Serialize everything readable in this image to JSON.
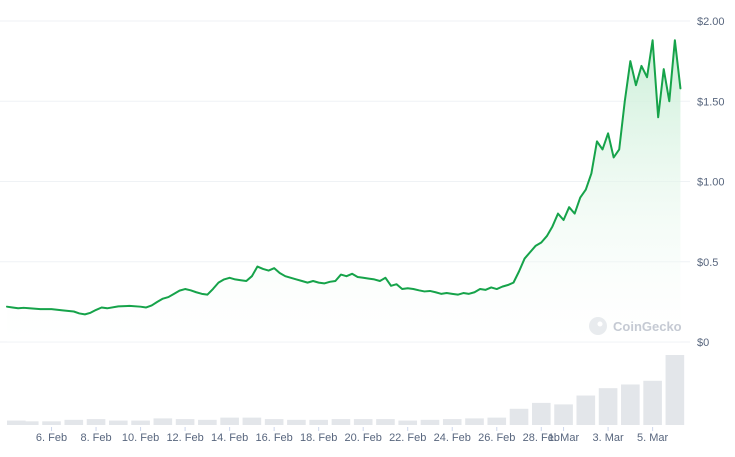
{
  "chart_data": {
    "type": "area",
    "title": "",
    "xlabel": "",
    "ylabel": "",
    "watermark": "CoinGecko",
    "currency_prefix": "$",
    "grid": true,
    "legend": "none",
    "ylim": [
      0,
      2.0
    ],
    "y_ticks": [
      {
        "value": 2.0,
        "label": "$2.00"
      },
      {
        "value": 1.5,
        "label": "$1.50"
      },
      {
        "value": 1.0,
        "label": "$1.00"
      },
      {
        "value": 0.5,
        "label": "$0.5"
      },
      {
        "value": 0.0,
        "label": "$0"
      }
    ],
    "x_range": [
      "2025-02-04",
      "2025-03-06"
    ],
    "x_ticks": [
      {
        "date": "2025-02-06",
        "label": "6. Feb"
      },
      {
        "date": "2025-02-08",
        "label": "8. Feb"
      },
      {
        "date": "2025-02-10",
        "label": "10. Feb"
      },
      {
        "date": "2025-02-12",
        "label": "12. Feb"
      },
      {
        "date": "2025-02-14",
        "label": "14. Feb"
      },
      {
        "date": "2025-02-16",
        "label": "16. Feb"
      },
      {
        "date": "2025-02-18",
        "label": "18. Feb"
      },
      {
        "date": "2025-02-20",
        "label": "20. Feb"
      },
      {
        "date": "2025-02-22",
        "label": "22. Feb"
      },
      {
        "date": "2025-02-24",
        "label": "24. Feb"
      },
      {
        "date": "2025-02-26",
        "label": "26. Feb"
      },
      {
        "date": "2025-02-28",
        "label": "28. Feb"
      },
      {
        "date": "2025-03-01",
        "label": "1. Mar"
      },
      {
        "date": "2025-03-03",
        "label": "3. Mar"
      },
      {
        "date": "2025-03-05",
        "label": "5. Mar"
      }
    ],
    "colors": {
      "line": "#16a34a",
      "area_top": "#c9eed6",
      "area_bottom": "#ffffff",
      "volume": "#e3e6ea",
      "grid": "#eff2f5",
      "tick_text": "#58667e",
      "watermark": "#c5cad3"
    },
    "series": [
      {
        "type": "line",
        "points": [
          [
            "2025-02-04 00:00",
            0.22
          ],
          [
            "2025-02-04 06:00",
            0.215
          ],
          [
            "2025-02-04 12:00",
            0.21
          ],
          [
            "2025-02-04 18:00",
            0.213
          ],
          [
            "2025-02-05 00:00",
            0.21
          ],
          [
            "2025-02-05 12:00",
            0.205
          ],
          [
            "2025-02-06 00:00",
            0.205
          ],
          [
            "2025-02-06 12:00",
            0.197
          ],
          [
            "2025-02-07 00:00",
            0.19
          ],
          [
            "2025-02-07 06:00",
            0.178
          ],
          [
            "2025-02-07 12:00",
            0.172
          ],
          [
            "2025-02-07 18:00",
            0.182
          ],
          [
            "2025-02-08 00:00",
            0.2
          ],
          [
            "2025-02-08 06:00",
            0.215
          ],
          [
            "2025-02-08 12:00",
            0.21
          ],
          [
            "2025-02-09 00:00",
            0.222
          ],
          [
            "2025-02-09 12:00",
            0.225
          ],
          [
            "2025-02-10 00:00",
            0.22
          ],
          [
            "2025-02-10 06:00",
            0.215
          ],
          [
            "2025-02-10 12:00",
            0.228
          ],
          [
            "2025-02-10 18:00",
            0.25
          ],
          [
            "2025-02-11 00:00",
            0.27
          ],
          [
            "2025-02-11 06:00",
            0.28
          ],
          [
            "2025-02-11 12:00",
            0.3
          ],
          [
            "2025-02-11 18:00",
            0.32
          ],
          [
            "2025-02-12 00:00",
            0.33
          ],
          [
            "2025-02-12 06:00",
            0.322
          ],
          [
            "2025-02-12 12:00",
            0.31
          ],
          [
            "2025-02-12 18:00",
            0.3
          ],
          [
            "2025-02-13 00:00",
            0.295
          ],
          [
            "2025-02-13 06:00",
            0.33
          ],
          [
            "2025-02-13 12:00",
            0.37
          ],
          [
            "2025-02-13 18:00",
            0.39
          ],
          [
            "2025-02-14 00:00",
            0.4
          ],
          [
            "2025-02-14 06:00",
            0.39
          ],
          [
            "2025-02-14 12:00",
            0.385
          ],
          [
            "2025-02-14 18:00",
            0.38
          ],
          [
            "2025-02-15 00:00",
            0.41
          ],
          [
            "2025-02-15 06:00",
            0.47
          ],
          [
            "2025-02-15 12:00",
            0.455
          ],
          [
            "2025-02-15 18:00",
            0.445
          ],
          [
            "2025-02-16 00:00",
            0.46
          ],
          [
            "2025-02-16 06:00",
            0.43
          ],
          [
            "2025-02-16 12:00",
            0.41
          ],
          [
            "2025-02-16 18:00",
            0.4
          ],
          [
            "2025-02-17 00:00",
            0.39
          ],
          [
            "2025-02-17 06:00",
            0.38
          ],
          [
            "2025-02-17 12:00",
            0.37
          ],
          [
            "2025-02-17 18:00",
            0.38
          ],
          [
            "2025-02-18 00:00",
            0.37
          ],
          [
            "2025-02-18 06:00",
            0.365
          ],
          [
            "2025-02-18 12:00",
            0.375
          ],
          [
            "2025-02-18 18:00",
            0.38
          ],
          [
            "2025-02-19 00:00",
            0.42
          ],
          [
            "2025-02-19 06:00",
            0.41
          ],
          [
            "2025-02-19 12:00",
            0.425
          ],
          [
            "2025-02-19 18:00",
            0.405
          ],
          [
            "2025-02-20 00:00",
            0.4
          ],
          [
            "2025-02-20 06:00",
            0.395
          ],
          [
            "2025-02-20 12:00",
            0.39
          ],
          [
            "2025-02-20 18:00",
            0.38
          ],
          [
            "2025-02-21 00:00",
            0.4
          ],
          [
            "2025-02-21 06:00",
            0.35
          ],
          [
            "2025-02-21 12:00",
            0.36
          ],
          [
            "2025-02-21 18:00",
            0.33
          ],
          [
            "2025-02-22 00:00",
            0.335
          ],
          [
            "2025-02-22 06:00",
            0.33
          ],
          [
            "2025-02-22 12:00",
            0.322
          ],
          [
            "2025-02-22 18:00",
            0.315
          ],
          [
            "2025-02-23 00:00",
            0.318
          ],
          [
            "2025-02-23 06:00",
            0.31
          ],
          [
            "2025-02-23 12:00",
            0.3
          ],
          [
            "2025-02-23 18:00",
            0.305
          ],
          [
            "2025-02-24 00:00",
            0.3
          ],
          [
            "2025-02-24 06:00",
            0.295
          ],
          [
            "2025-02-24 12:00",
            0.305
          ],
          [
            "2025-02-24 18:00",
            0.3
          ],
          [
            "2025-02-25 00:00",
            0.31
          ],
          [
            "2025-02-25 06:00",
            0.33
          ],
          [
            "2025-02-25 12:00",
            0.325
          ],
          [
            "2025-02-25 18:00",
            0.34
          ],
          [
            "2025-02-26 00:00",
            0.33
          ],
          [
            "2025-02-26 06:00",
            0.345
          ],
          [
            "2025-02-26 12:00",
            0.355
          ],
          [
            "2025-02-26 18:00",
            0.37
          ],
          [
            "2025-02-27 00:00",
            0.44
          ],
          [
            "2025-02-27 06:00",
            0.52
          ],
          [
            "2025-02-27 12:00",
            0.56
          ],
          [
            "2025-02-27 18:00",
            0.6
          ],
          [
            "2025-02-28 00:00",
            0.62
          ],
          [
            "2025-02-28 06:00",
            0.66
          ],
          [
            "2025-02-28 12:00",
            0.72
          ],
          [
            "2025-02-28 18:00",
            0.8
          ],
          [
            "2025-03-01 00:00",
            0.76
          ],
          [
            "2025-03-01 06:00",
            0.84
          ],
          [
            "2025-03-01 12:00",
            0.8
          ],
          [
            "2025-03-01 18:00",
            0.9
          ],
          [
            "2025-03-02 00:00",
            0.95
          ],
          [
            "2025-03-02 06:00",
            1.05
          ],
          [
            "2025-03-02 12:00",
            1.25
          ],
          [
            "2025-03-02 18:00",
            1.2
          ],
          [
            "2025-03-03 00:00",
            1.3
          ],
          [
            "2025-03-03 06:00",
            1.15
          ],
          [
            "2025-03-03 12:00",
            1.2
          ],
          [
            "2025-03-03 18:00",
            1.5
          ],
          [
            "2025-03-04 00:00",
            1.75
          ],
          [
            "2025-03-04 06:00",
            1.6
          ],
          [
            "2025-03-04 12:00",
            1.72
          ],
          [
            "2025-03-04 18:00",
            1.65
          ],
          [
            "2025-03-05 00:00",
            1.88
          ],
          [
            "2025-03-05 06:00",
            1.4
          ],
          [
            "2025-03-05 12:00",
            1.7
          ],
          [
            "2025-03-05 18:00",
            1.5
          ],
          [
            "2025-03-06 00:00",
            1.88
          ],
          [
            "2025-03-06 06:00",
            1.58
          ]
        ]
      },
      {
        "type": "volume",
        "points": [
          [
            "2025-02-04",
            0.06
          ],
          [
            "2025-02-05",
            0.05
          ],
          [
            "2025-02-06",
            0.05
          ],
          [
            "2025-02-07",
            0.07
          ],
          [
            "2025-02-08",
            0.08
          ],
          [
            "2025-02-09",
            0.06
          ],
          [
            "2025-02-10",
            0.06
          ],
          [
            "2025-02-11",
            0.09
          ],
          [
            "2025-02-12",
            0.08
          ],
          [
            "2025-02-13",
            0.07
          ],
          [
            "2025-02-14",
            0.1
          ],
          [
            "2025-02-15",
            0.1
          ],
          [
            "2025-02-16",
            0.08
          ],
          [
            "2025-02-17",
            0.07
          ],
          [
            "2025-02-18",
            0.07
          ],
          [
            "2025-02-19",
            0.08
          ],
          [
            "2025-02-20",
            0.08
          ],
          [
            "2025-02-21",
            0.08
          ],
          [
            "2025-02-22",
            0.06
          ],
          [
            "2025-02-23",
            0.07
          ],
          [
            "2025-02-24",
            0.08
          ],
          [
            "2025-02-25",
            0.09
          ],
          [
            "2025-02-26",
            0.1
          ],
          [
            "2025-02-27",
            0.22
          ],
          [
            "2025-02-28",
            0.3
          ],
          [
            "2025-03-01",
            0.28
          ],
          [
            "2025-03-02",
            0.4
          ],
          [
            "2025-03-03",
            0.5
          ],
          [
            "2025-03-04",
            0.55
          ],
          [
            "2025-03-05",
            0.6
          ],
          [
            "2025-03-06",
            0.95
          ]
        ]
      }
    ]
  }
}
